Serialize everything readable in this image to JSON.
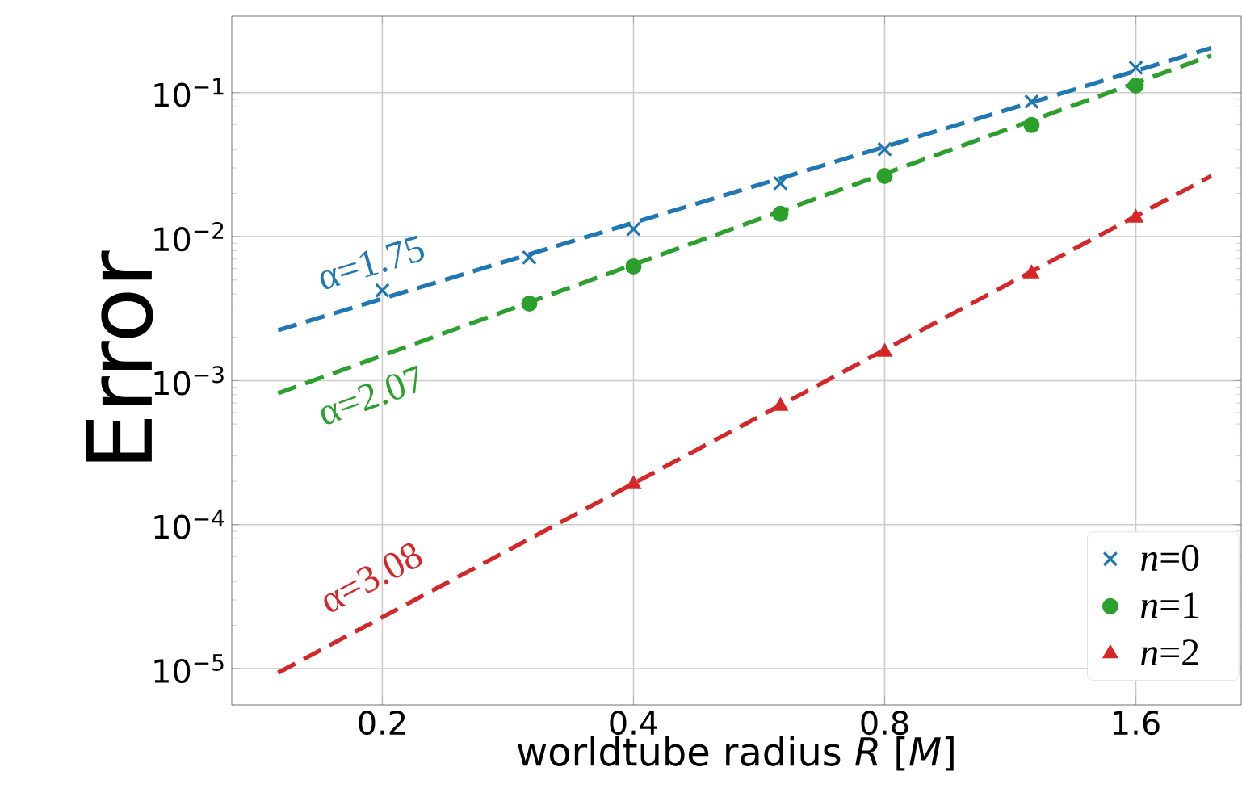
{
  "chart_data": {
    "type": "scatter",
    "xlabel": "worldtube radius *R* [*M*]",
    "ylabel": "Error",
    "log": "xy",
    "grid": true,
    "legend": "bottom right",
    "xlim": [
      0.132,
      2.14
    ],
    "ylim": [
      5.6e-06,
      0.34
    ],
    "xticks": [
      0.2,
      0.4,
      0.8,
      1.6
    ],
    "yticks": [
      {
        "value": 1e-05,
        "label": "10$^{−5}$"
      },
      {
        "value": 0.0001,
        "label": "10$^{−4}$"
      },
      {
        "value": 0.001,
        "label": "10$^{−3}$"
      },
      {
        "value": 0.01,
        "label": "10$^{−2}$"
      },
      {
        "value": 0.1,
        "label": "10$^{−1}$"
      }
    ],
    "series": [
      {
        "name": "*n*=0",
        "marker": "cross",
        "color": "#1f77b4",
        "x": [
          0.2,
          0.3,
          0.4,
          0.6,
          0.8,
          1.2,
          1.6
        ],
        "values": [
          0.00423,
          0.00717,
          0.0113,
          0.0235,
          0.0405,
          0.0867,
          0.149
        ]
      },
      {
        "name": "*n*=1",
        "marker": "circle",
        "color": "#2ca02c",
        "x": [
          0.3,
          0.4,
          0.6,
          0.8,
          1.2,
          1.6
        ],
        "values": [
          0.00343,
          0.00622,
          0.0144,
          0.0264,
          0.0596,
          0.112
        ]
      },
      {
        "name": "*n*=2",
        "marker": "triangle",
        "color": "#d62728",
        "x": [
          0.4,
          0.6,
          0.8,
          1.2,
          1.6
        ],
        "values": [
          0.00019,
          0.000665,
          0.00158,
          0.00554,
          0.0135
        ]
      },
      {
        "type": "line",
        "line_style": "dashed",
        "color": "#1f77b4",
        "x": [
          0.15,
          1.97
        ],
        "values": [
          0.00224,
          0.204
        ]
      },
      {
        "type": "line",
        "line_style": "dashed",
        "color": "#2ca02c",
        "x": [
          0.15,
          1.97
        ],
        "values": [
          0.000818,
          0.181
        ]
      },
      {
        "type": "line",
        "line_style": "dashed",
        "color": "#d62728",
        "x": [
          0.15,
          1.97
        ],
        "values": [
          9.37e-06,
          0.0264
        ]
      }
    ],
    "annotations": [
      "α=1.75",
      "α=2.07",
      "α=3.08"
    ]
  }
}
